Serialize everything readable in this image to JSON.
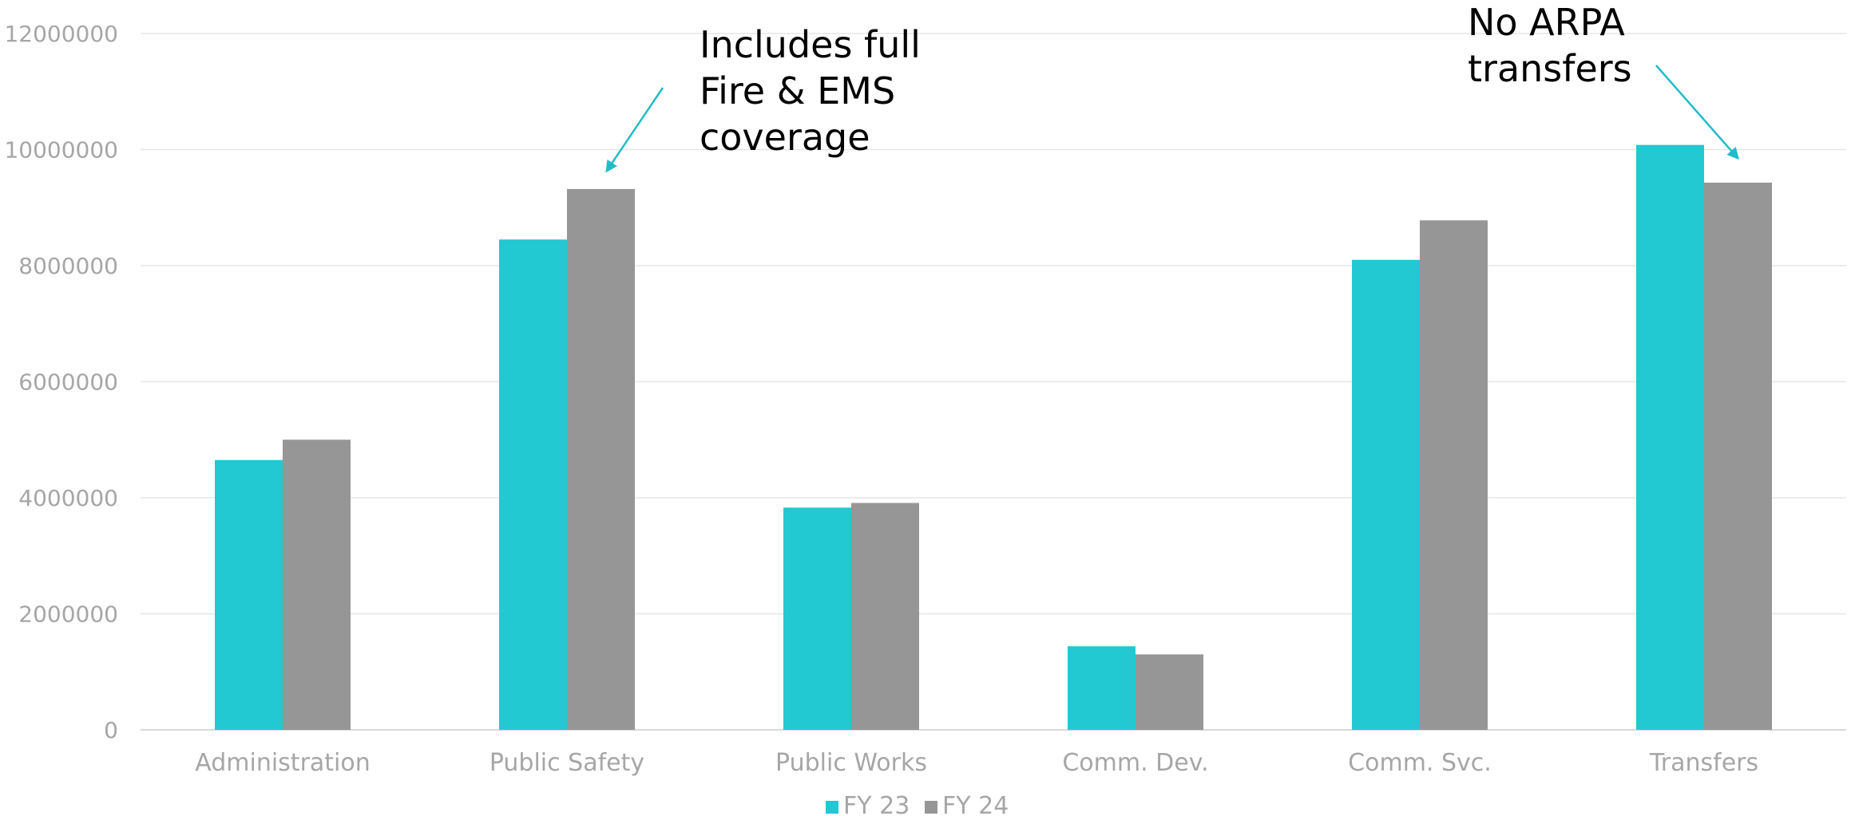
{
  "colors": {
    "fy23": "#22c8d2",
    "fy24": "#969696",
    "arrow": "#22bcc8"
  },
  "chart_data": {
    "type": "bar",
    "title": "",
    "xlabel": "",
    "ylabel": "",
    "ylim": [
      0,
      12000000
    ],
    "yticks": [
      "0",
      "2000000",
      "4000000",
      "6000000",
      "8000000",
      "10000000",
      "12000000"
    ],
    "grid": true,
    "legend_position": "bottom",
    "categories": [
      "Administration",
      "Public Safety",
      "Public Works",
      "Comm. Dev.",
      "Comm. Svc.",
      "Transfers"
    ],
    "series": [
      {
        "name": "FY 23",
        "values": [
          4650000,
          8450000,
          3830000,
          1440000,
          8100000,
          10080000
        ]
      },
      {
        "name": "FY 24",
        "values": [
          5000000,
          9320000,
          3910000,
          1300000,
          8780000,
          9430000
        ]
      }
    ],
    "annotations": [
      {
        "lines": [
          "Includes full",
          "Fire & EMS",
          "coverage"
        ],
        "category": "Public Safety",
        "series": "FY 24"
      },
      {
        "lines": [
          "No ARPA",
          "transfers"
        ],
        "category": "Transfers",
        "series": "FY 24"
      }
    ]
  }
}
